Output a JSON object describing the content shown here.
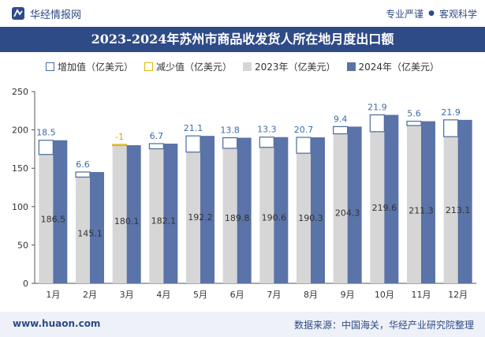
{
  "header": {
    "brand": "华经情报网",
    "tags": [
      "专业严谨",
      "客观科学"
    ],
    "tag_separator": "●"
  },
  "footer": {
    "url": "www.huaon.com",
    "source": "数据来源：中国海关，华经产业研究院整理"
  },
  "colors": {
    "title_band": "#2f4b87",
    "bar_2023": "#d6d6d6",
    "bar_2024": "#5a73a8",
    "increase_outline": "#4a6aa0",
    "decrease_outline": "#e5b500",
    "increase_label": "#3d6aa8",
    "decrease_label": "#d9a400"
  },
  "chart_data": {
    "type": "bar",
    "title": "2023-2024年苏州市商品收发货人所在地月度出口额",
    "legend": [
      "增加值（亿美元）",
      "减少值（亿美元）",
      "2023年（亿美元）",
      "2024年（亿美元）"
    ],
    "legend_position": "top",
    "categories": [
      "1月",
      "2月",
      "3月",
      "4月",
      "5月",
      "6月",
      "7月",
      "8月",
      "9月",
      "10月",
      "11月",
      "12月"
    ],
    "series": [
      {
        "name": "2023年（亿美元）",
        "values": [
          168.0,
          138.5,
          181.1,
          175.4,
          171.1,
          176.0,
          177.3,
          169.6,
          194.9,
          197.7,
          205.7,
          191.2
        ]
      },
      {
        "name": "2024年（亿美元）",
        "values": [
          186.5,
          145.1,
          180.1,
          182.1,
          192.2,
          189.8,
          190.6,
          190.3,
          204.3,
          219.6,
          211.3,
          213.1
        ]
      }
    ],
    "change_labels": [
      "18.5",
      "6.6",
      "-1",
      "6.7",
      "21.1",
      "13.8",
      "13.3",
      "20.7",
      "9.4",
      "21.9",
      "5.6",
      "21.9"
    ],
    "value_labels": [
      "186.5",
      "145.1",
      "180.1",
      "182.1",
      "192.2",
      "189.8",
      "190.6",
      "190.3",
      "204.3",
      "219.6",
      "211.3",
      "213.1"
    ],
    "y_ticks": [
      "0",
      "50",
      "100",
      "150",
      "200",
      "250"
    ],
    "ylim": [
      0,
      250
    ],
    "grid": false
  }
}
